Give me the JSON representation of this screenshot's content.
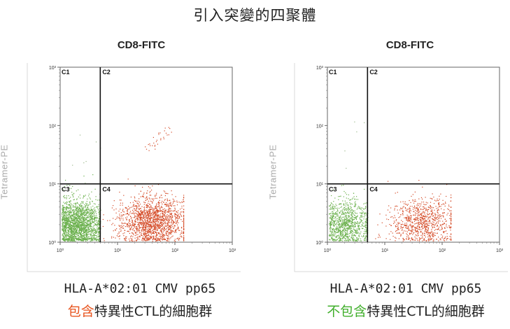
{
  "title": "引入突變的四聚體",
  "chart_data": [
    {
      "type": "scatter",
      "xlabel": "CD8-FITC",
      "ylabel": "Tetramer-PE",
      "x_scale": "log",
      "y_scale": "log",
      "xlim": [
        1,
        1000
      ],
      "ylim": [
        1,
        1000
      ],
      "x_ticks": [
        "10⁰",
        "10¹",
        "10²",
        "10³"
      ],
      "y_ticks": [
        "10⁰",
        "10¹",
        "10²",
        "10³"
      ],
      "quadrants": [
        "C1",
        "C2",
        "C3",
        "C4"
      ],
      "gate_x": 10,
      "gate_y": 10,
      "clusters": [
        {
          "name": "C3",
          "color": "#6ab04c",
          "center": [
            2,
            2
          ],
          "count": 2200
        },
        {
          "name": "C4",
          "color": "#d44a26",
          "center": [
            40,
            2.2
          ],
          "count": 1700
        },
        {
          "name": "C2",
          "color": "#d44a26",
          "center": [
            55,
            60
          ],
          "count": 30
        }
      ],
      "caption_line1": "HLA-A*02:01 CMV pp65",
      "caption_highlight": "包含",
      "caption_highlight_color": "#e8541e",
      "caption_rest": "特異性CTL的細胞群"
    },
    {
      "type": "scatter",
      "xlabel": "CD8-FITC",
      "ylabel": "Tetramer-PE",
      "x_scale": "log",
      "y_scale": "log",
      "xlim": [
        1,
        1000
      ],
      "ylim": [
        1,
        1000
      ],
      "x_ticks": [
        "10⁰",
        "10¹",
        "10²",
        "10³"
      ],
      "y_ticks": [
        "10⁰",
        "10¹",
        "10²",
        "10³"
      ],
      "quadrants": [
        "C1",
        "C2",
        "C3",
        "C4"
      ],
      "gate_x": 10,
      "gate_y": 10,
      "clusters": [
        {
          "name": "C3",
          "color": "#6ab04c",
          "center": [
            2,
            2
          ],
          "count": 1100
        },
        {
          "name": "C4",
          "color": "#d44a26",
          "center": [
            45,
            2.2
          ],
          "count": 900
        }
      ],
      "caption_line1": "HLA-A*02:01 CMV pp65",
      "caption_highlight": "不包含",
      "caption_highlight_color": "#3fae2a",
      "caption_rest": "特異性CTL的細胞群"
    }
  ]
}
